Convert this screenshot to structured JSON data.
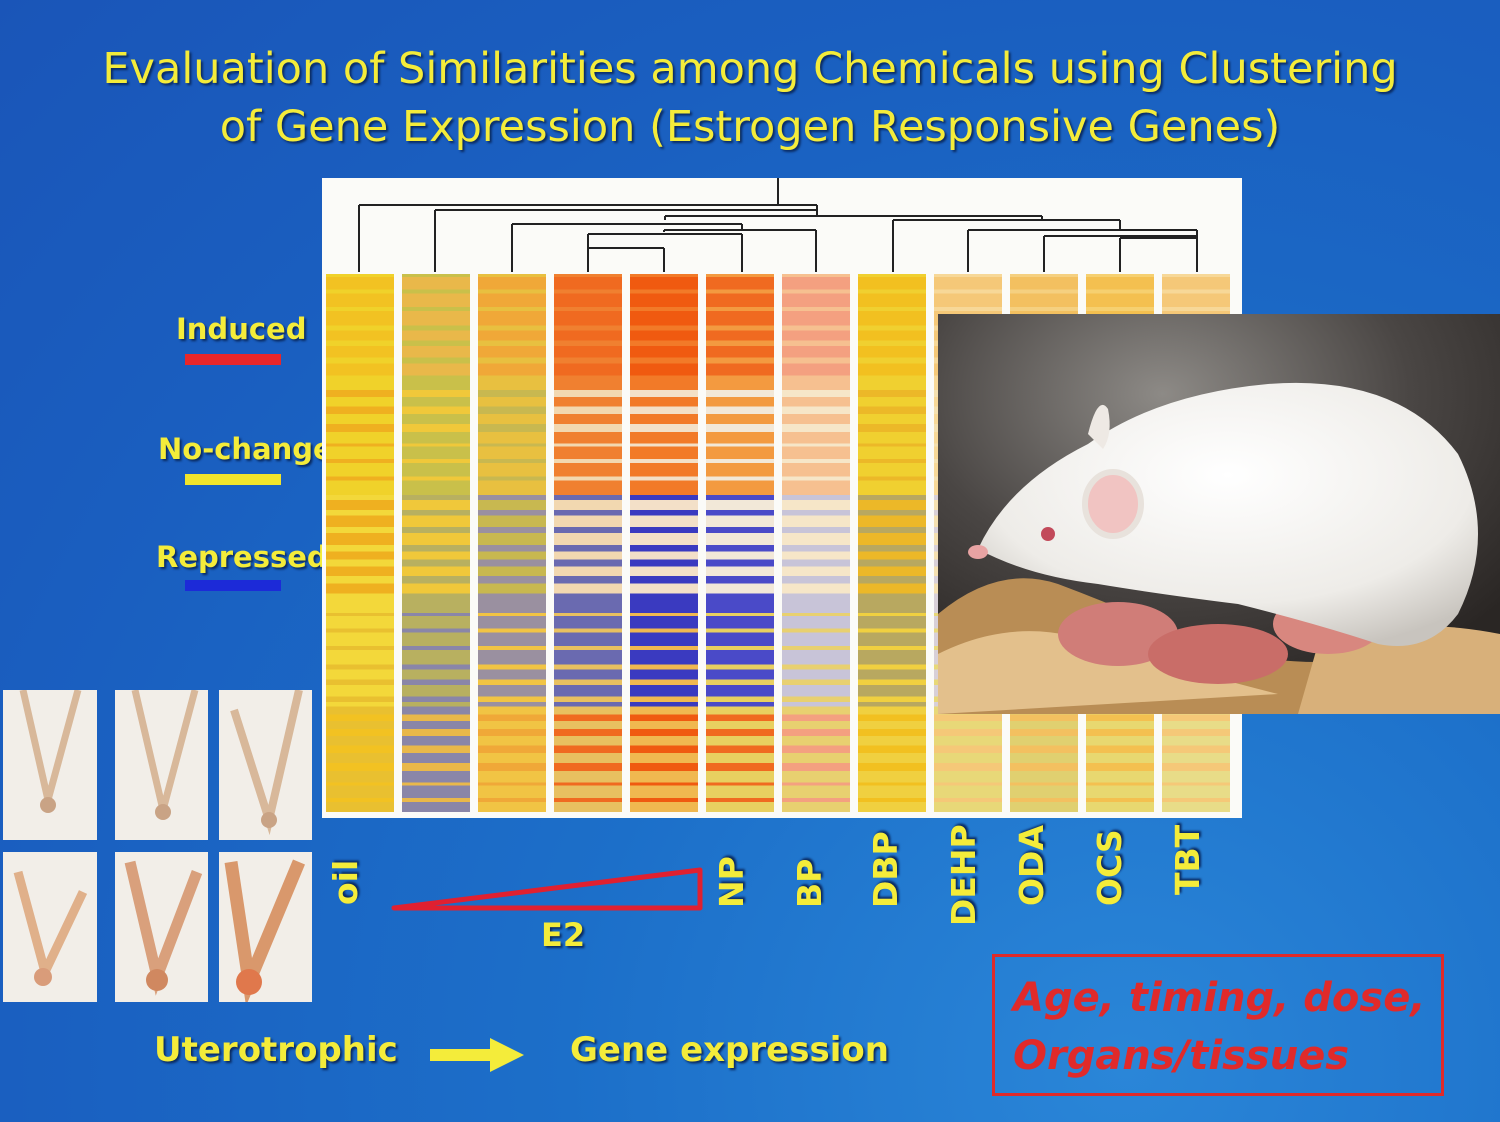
{
  "slide": {
    "title_line1": "Evaluation of Similarities among Chemicals using Clustering",
    "title_line2": "of Gene Expression  (Estrogen Responsive Genes)"
  },
  "legend": [
    {
      "label": "Induced",
      "color": "#e8262a"
    },
    {
      "label": "No-change",
      "color": "#f1e52c"
    },
    {
      "label": "Repressed",
      "color": "#1c2ad8"
    }
  ],
  "columns": [
    "oil",
    "NP",
    "BP",
    "DBP",
    "DEHP",
    "ODA",
    "OCS",
    "TBT"
  ],
  "gradient_label": "E2",
  "bottom": {
    "left": "Uterotrophic",
    "right": "Gene expression"
  },
  "note": {
    "line1": "Age, timing, dose,",
    "line2": "Organs/tissues"
  },
  "icons": {
    "arrow": "right-arrow-icon",
    "triangle": "dose-gradient-triangle"
  }
}
